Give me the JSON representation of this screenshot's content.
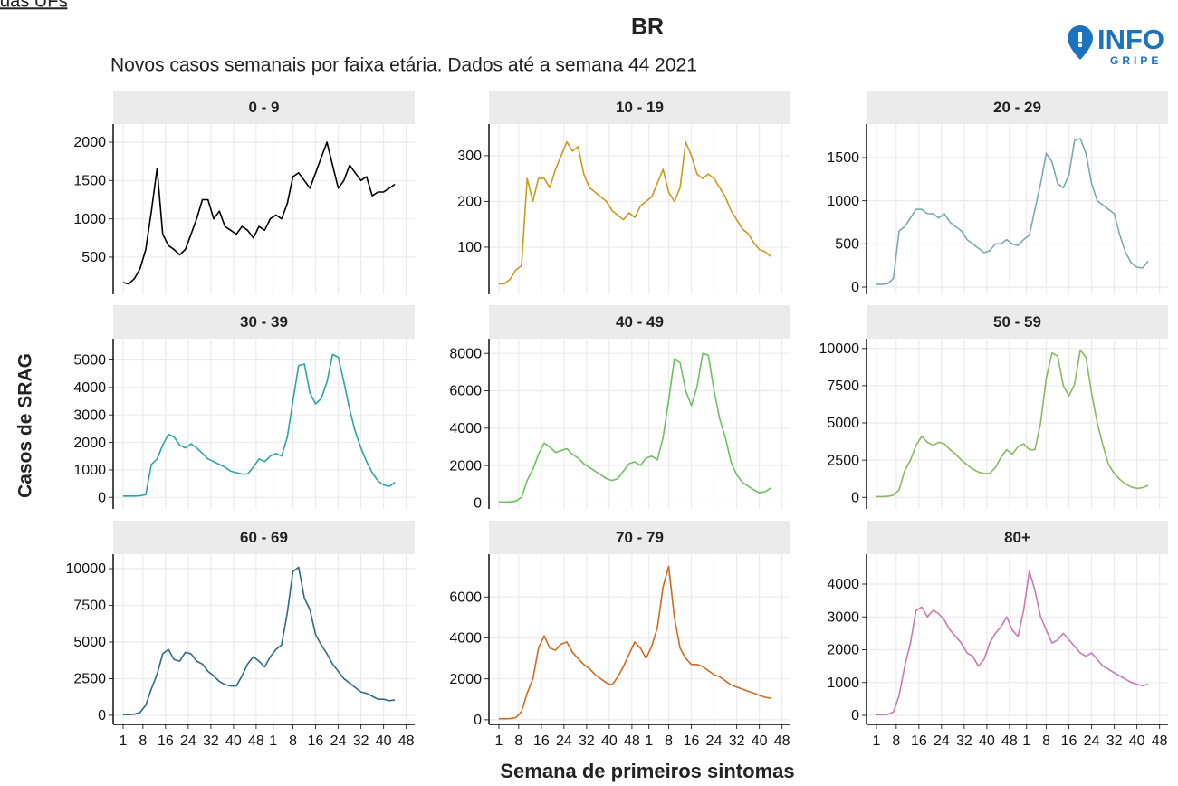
{
  "header": {
    "top_link": "das UFs",
    "top_link_suffix": ".",
    "title": "BR",
    "subtitle": "Novos casos semanais por faixa etária. Dados até a semana 44 2021",
    "logo_main": "INFO",
    "logo_sub": "GRIPE",
    "y_label": "Casos de SRAG",
    "x_label": "Semana de primeiros sintomas"
  },
  "chart_data": [
    {
      "type": "line",
      "title": "0 - 9",
      "color": "#000000",
      "xlim": [
        -2.5,
        104
      ],
      "ylim": [
        15,
        2236
      ],
      "yticks": [
        500,
        1000,
        1500,
        2000
      ],
      "xticks": [
        1,
        8,
        16,
        24,
        32,
        40,
        48,
        {
          "value": 54,
          "label": "1"
        },
        {
          "value": 61,
          "label": "8"
        },
        {
          "value": 69,
          "label": "16"
        },
        {
          "value": 77,
          "label": "24"
        },
        {
          "value": 85,
          "label": "32"
        },
        {
          "value": 93,
          "label": "40"
        },
        {
          "value": 101,
          "label": "48"
        }
      ],
      "x": [
        1,
        3,
        5,
        7,
        9,
        11,
        13,
        15,
        17,
        19,
        21,
        23,
        25,
        27,
        29,
        31,
        33,
        35,
        37,
        39,
        41,
        43,
        45,
        47,
        49,
        51,
        53,
        55,
        57,
        59,
        61,
        63,
        65,
        67,
        69,
        71,
        73,
        75,
        77,
        79,
        81,
        83,
        85,
        87,
        89,
        91,
        93,
        95,
        97
      ],
      "values": [
        170,
        150,
        220,
        350,
        600,
        1100,
        1660,
        800,
        650,
        600,
        530,
        600,
        800,
        1000,
        1250,
        1250,
        1000,
        1100,
        900,
        850,
        800,
        900,
        850,
        750,
        900,
        850,
        1000,
        1050,
        1000,
        1200,
        1550,
        1600,
        1500,
        1400,
        1600,
        1800,
        2000,
        1700,
        1400,
        1500,
        1700,
        1600,
        1500,
        1550,
        1300,
        1350,
        1350,
        1400,
        1450
      ]
    },
    {
      "type": "line",
      "title": "10 - 19",
      "color": "#c99a1c",
      "xlim": [
        -2.5,
        104
      ],
      "ylim": [
        -3,
        369
      ],
      "yticks": [
        100,
        200,
        300
      ],
      "xticks": [
        1,
        8,
        16,
        24,
        32,
        40,
        48,
        {
          "value": 54,
          "label": "1"
        },
        {
          "value": 61,
          "label": "8"
        },
        {
          "value": 69,
          "label": "16"
        },
        {
          "value": 77,
          "label": "24"
        },
        {
          "value": 85,
          "label": "32"
        },
        {
          "value": 93,
          "label": "40"
        },
        {
          "value": 101,
          "label": "48"
        }
      ],
      "x": [
        1,
        3,
        5,
        7,
        9,
        11,
        13,
        15,
        17,
        19,
        21,
        23,
        25,
        27,
        29,
        31,
        33,
        35,
        37,
        39,
        41,
        43,
        45,
        47,
        49,
        51,
        53,
        55,
        57,
        59,
        61,
        63,
        65,
        67,
        69,
        71,
        73,
        75,
        77,
        79,
        81,
        83,
        85,
        87,
        89,
        91,
        93,
        95,
        97
      ],
      "values": [
        20,
        20,
        30,
        50,
        60,
        250,
        200,
        250,
        250,
        230,
        270,
        300,
        330,
        310,
        320,
        260,
        230,
        220,
        210,
        200,
        180,
        170,
        160,
        175,
        165,
        190,
        200,
        210,
        240,
        270,
        220,
        200,
        230,
        330,
        300,
        260,
        250,
        260,
        250,
        230,
        210,
        180,
        160,
        140,
        130,
        110,
        95,
        90,
        80
      ]
    },
    {
      "type": "line",
      "title": "20 - 29",
      "color": "#7aaab0",
      "xlim": [
        -2.5,
        104
      ],
      "ylim": [
        -84,
        1888
      ],
      "yticks": [
        0,
        500,
        1000,
        1500
      ],
      "xticks": [
        1,
        8,
        16,
        24,
        32,
        40,
        48,
        {
          "value": 54,
          "label": "1"
        },
        {
          "value": 61,
          "label": "8"
        },
        {
          "value": 69,
          "label": "16"
        },
        {
          "value": 77,
          "label": "24"
        },
        {
          "value": 85,
          "label": "32"
        },
        {
          "value": 93,
          "label": "40"
        },
        {
          "value": 101,
          "label": "48"
        }
      ],
      "x": [
        1,
        3,
        5,
        7,
        9,
        11,
        13,
        15,
        17,
        19,
        21,
        23,
        25,
        27,
        29,
        31,
        33,
        35,
        37,
        39,
        41,
        43,
        45,
        47,
        49,
        51,
        53,
        55,
        57,
        59,
        61,
        63,
        65,
        67,
        69,
        71,
        73,
        75,
        77,
        79,
        81,
        83,
        85,
        87,
        89,
        91,
        93,
        95,
        97
      ],
      "values": [
        30,
        30,
        40,
        100,
        650,
        700,
        800,
        900,
        900,
        850,
        850,
        800,
        850,
        750,
        700,
        650,
        550,
        500,
        450,
        400,
        420,
        500,
        500,
        550,
        500,
        480,
        550,
        600,
        900,
        1200,
        1550,
        1450,
        1200,
        1150,
        1300,
        1700,
        1720,
        1550,
        1200,
        1000,
        950,
        900,
        850,
        600,
        400,
        280,
        230,
        220,
        300
      ]
    },
    {
      "type": "line",
      "title": "30 - 39",
      "color": "#2aa5a5",
      "xlim": [
        -2.5,
        104
      ],
      "ylim": [
        -419,
        5774
      ],
      "yticks": [
        0,
        1000,
        2000,
        3000,
        4000,
        5000
      ],
      "xticks": [
        1,
        8,
        16,
        24,
        32,
        40,
        48,
        {
          "value": 54,
          "label": "1"
        },
        {
          "value": 61,
          "label": "8"
        },
        {
          "value": 69,
          "label": "16"
        },
        {
          "value": 77,
          "label": "24"
        },
        {
          "value": 85,
          "label": "32"
        },
        {
          "value": 93,
          "label": "40"
        },
        {
          "value": 101,
          "label": "48"
        }
      ],
      "x": [
        1,
        3,
        5,
        7,
        9,
        11,
        13,
        15,
        17,
        19,
        21,
        23,
        25,
        27,
        29,
        31,
        33,
        35,
        37,
        39,
        41,
        43,
        45,
        47,
        49,
        51,
        53,
        55,
        57,
        59,
        61,
        63,
        65,
        67,
        69,
        71,
        73,
        75,
        77,
        79,
        81,
        83,
        85,
        87,
        89,
        91,
        93,
        95,
        97
      ],
      "values": [
        50,
        50,
        50,
        60,
        100,
        1200,
        1400,
        1900,
        2300,
        2200,
        1900,
        1800,
        1950,
        1800,
        1600,
        1400,
        1300,
        1200,
        1100,
        950,
        900,
        850,
        850,
        1100,
        1400,
        1300,
        1500,
        1600,
        1500,
        2200,
        3500,
        4800,
        4850,
        3800,
        3400,
        3600,
        4200,
        5200,
        5100,
        4200,
        3200,
        2400,
        1800,
        1300,
        900,
        600,
        450,
        400,
        550
      ]
    },
    {
      "type": "line",
      "title": "40 - 49",
      "color": "#6cc060",
      "xlim": [
        -2.5,
        104
      ],
      "ylim": [
        -319,
        8785
      ],
      "yticks": [
        0,
        2000,
        4000,
        6000,
        8000
      ],
      "xticks": [
        1,
        8,
        16,
        24,
        32,
        40,
        48,
        {
          "value": 54,
          "label": "1"
        },
        {
          "value": 61,
          "label": "8"
        },
        {
          "value": 69,
          "label": "16"
        },
        {
          "value": 77,
          "label": "24"
        },
        {
          "value": 85,
          "label": "32"
        },
        {
          "value": 93,
          "label": "40"
        },
        {
          "value": 101,
          "label": "48"
        }
      ],
      "x": [
        1,
        3,
        5,
        7,
        9,
        11,
        13,
        15,
        17,
        19,
        21,
        23,
        25,
        27,
        29,
        31,
        33,
        35,
        37,
        39,
        41,
        43,
        45,
        47,
        49,
        51,
        53,
        55,
        57,
        59,
        61,
        63,
        65,
        67,
        69,
        71,
        73,
        75,
        77,
        79,
        81,
        83,
        85,
        87,
        89,
        91,
        93,
        95,
        97
      ],
      "values": [
        50,
        50,
        60,
        100,
        300,
        1200,
        1800,
        2600,
        3200,
        3000,
        2700,
        2800,
        2900,
        2600,
        2400,
        2100,
        1900,
        1700,
        1500,
        1300,
        1200,
        1300,
        1700,
        2100,
        2200,
        2000,
        2400,
        2500,
        2300,
        3500,
        5500,
        7700,
        7500,
        6000,
        5200,
        6200,
        8000,
        7900,
        6000,
        4500,
        3500,
        2200,
        1500,
        1100,
        900,
        700,
        550,
        600,
        800
      ]
    },
    {
      "type": "line",
      "title": "50 - 59",
      "color": "#8ab860",
      "xlim": [
        -2.5,
        104
      ],
      "ylim": [
        -774,
        10655
      ],
      "yticks": [
        0,
        2500,
        5000,
        7500,
        10000
      ],
      "xticks": [
        1,
        8,
        16,
        24,
        32,
        40,
        48,
        {
          "value": 54,
          "label": "1"
        },
        {
          "value": 61,
          "label": "8"
        },
        {
          "value": 69,
          "label": "16"
        },
        {
          "value": 77,
          "label": "24"
        },
        {
          "value": 85,
          "label": "32"
        },
        {
          "value": 93,
          "label": "40"
        },
        {
          "value": 101,
          "label": "48"
        }
      ],
      "x": [
        1,
        3,
        5,
        7,
        9,
        11,
        13,
        15,
        17,
        19,
        21,
        23,
        25,
        27,
        29,
        31,
        33,
        35,
        37,
        39,
        41,
        43,
        45,
        47,
        49,
        51,
        53,
        55,
        57,
        59,
        61,
        63,
        65,
        67,
        69,
        71,
        73,
        75,
        77,
        79,
        81,
        83,
        85,
        87,
        89,
        91,
        93,
        95,
        97
      ],
      "values": [
        50,
        50,
        70,
        150,
        500,
        1800,
        2500,
        3500,
        4100,
        3700,
        3500,
        3700,
        3600,
        3200,
        2900,
        2500,
        2200,
        1900,
        1700,
        1600,
        1600,
        2000,
        2700,
        3200,
        2900,
        3400,
        3600,
        3200,
        3200,
        5000,
        8000,
        9700,
        9500,
        7500,
        6800,
        7600,
        9900,
        9400,
        7000,
        5000,
        3500,
        2200,
        1600,
        1200,
        900,
        700,
        600,
        650,
        800
      ]
    },
    {
      "type": "line",
      "title": "60 - 69",
      "color": "#2f6b80",
      "xlim": [
        -2.5,
        104
      ],
      "ylim": [
        -617,
        10988
      ],
      "yticks": [
        0,
        2500,
        5000,
        7500,
        10000
      ],
      "xticks": [
        1,
        8,
        16,
        24,
        32,
        40,
        48,
        {
          "value": 54,
          "label": "1"
        },
        {
          "value": 61,
          "label": "8"
        },
        {
          "value": 69,
          "label": "16"
        },
        {
          "value": 77,
          "label": "24"
        },
        {
          "value": 85,
          "label": "32"
        },
        {
          "value": 93,
          "label": "40"
        },
        {
          "value": 101,
          "label": "48"
        }
      ],
      "x": [
        1,
        3,
        5,
        7,
        9,
        11,
        13,
        15,
        17,
        19,
        21,
        23,
        25,
        27,
        29,
        31,
        33,
        35,
        37,
        39,
        41,
        43,
        45,
        47,
        49,
        51,
        53,
        55,
        57,
        59,
        61,
        63,
        65,
        67,
        69,
        71,
        73,
        75,
        77,
        79,
        81,
        83,
        85,
        87,
        89,
        91,
        93,
        95,
        97
      ],
      "values": [
        50,
        50,
        80,
        200,
        700,
        1800,
        2800,
        4200,
        4500,
        3800,
        3700,
        4300,
        4200,
        3700,
        3500,
        3000,
        2700,
        2300,
        2100,
        2000,
        2000,
        2700,
        3500,
        4000,
        3700,
        3300,
        4000,
        4500,
        4800,
        7000,
        9800,
        10100,
        8000,
        7200,
        5500,
        4800,
        4200,
        3500,
        3000,
        2500,
        2200,
        1900,
        1600,
        1500,
        1300,
        1100,
        1100,
        1000,
        1050
      ]
    },
    {
      "type": "line",
      "title": "70 - 79",
      "color": "#d06a1e",
      "xlim": [
        -2.5,
        104
      ],
      "ylim": [
        -227,
        8091
      ],
      "yticks": [
        0,
        2000,
        4000,
        6000
      ],
      "xticks": [
        1,
        8,
        16,
        24,
        32,
        40,
        48,
        {
          "value": 54,
          "label": "1"
        },
        {
          "value": 61,
          "label": "8"
        },
        {
          "value": 69,
          "label": "16"
        },
        {
          "value": 77,
          "label": "24"
        },
        {
          "value": 85,
          "label": "32"
        },
        {
          "value": 93,
          "label": "40"
        },
        {
          "value": 101,
          "label": "48"
        }
      ],
      "x": [
        1,
        3,
        5,
        7,
        9,
        11,
        13,
        15,
        17,
        19,
        21,
        23,
        25,
        27,
        29,
        31,
        33,
        35,
        37,
        39,
        41,
        43,
        45,
        47,
        49,
        51,
        53,
        55,
        57,
        59,
        61,
        63,
        65,
        67,
        69,
        71,
        73,
        75,
        77,
        79,
        81,
        83,
        85,
        87,
        89,
        91,
        93,
        95,
        97
      ],
      "values": [
        50,
        50,
        60,
        100,
        400,
        1300,
        2000,
        3500,
        4100,
        3500,
        3400,
        3700,
        3800,
        3300,
        3000,
        2700,
        2500,
        2200,
        2000,
        1800,
        1700,
        2100,
        2600,
        3200,
        3800,
        3500,
        3000,
        3600,
        4500,
        6500,
        7500,
        5000,
        3500,
        3000,
        2700,
        2700,
        2600,
        2400,
        2200,
        2100,
        1900,
        1700,
        1600,
        1500,
        1400,
        1300,
        1200,
        1100,
        1050
      ]
    },
    {
      "type": "line",
      "title": "80+",
      "color": "#c87ab0",
      "xlim": [
        -2.5,
        104
      ],
      "ylim": [
        -276,
        4910
      ],
      "yticks": [
        0,
        1000,
        2000,
        3000,
        4000
      ],
      "xticks": [
        1,
        8,
        16,
        24,
        32,
        40,
        48,
        {
          "value": 54,
          "label": "1"
        },
        {
          "value": 61,
          "label": "8"
        },
        {
          "value": 69,
          "label": "16"
        },
        {
          "value": 77,
          "label": "24"
        },
        {
          "value": 85,
          "label": "32"
        },
        {
          "value": 93,
          "label": "40"
        },
        {
          "value": 101,
          "label": "48"
        }
      ],
      "x": [
        1,
        3,
        5,
        7,
        9,
        11,
        13,
        15,
        17,
        19,
        21,
        23,
        25,
        27,
        29,
        31,
        33,
        35,
        37,
        39,
        41,
        43,
        45,
        47,
        49,
        51,
        53,
        55,
        57,
        59,
        61,
        63,
        65,
        67,
        69,
        71,
        73,
        75,
        77,
        79,
        81,
        83,
        85,
        87,
        89,
        91,
        93,
        95,
        97
      ],
      "values": [
        20,
        20,
        30,
        100,
        600,
        1500,
        2200,
        3200,
        3300,
        3000,
        3200,
        3100,
        2900,
        2600,
        2400,
        2200,
        1900,
        1800,
        1500,
        1700,
        2200,
        2500,
        2700,
        3000,
        2600,
        2400,
        3200,
        4400,
        3800,
        3000,
        2600,
        2200,
        2300,
        2500,
        2300,
        2100,
        1900,
        1800,
        1900,
        1700,
        1500,
        1400,
        1300,
        1200,
        1100,
        1000,
        950,
        900,
        950
      ]
    }
  ]
}
